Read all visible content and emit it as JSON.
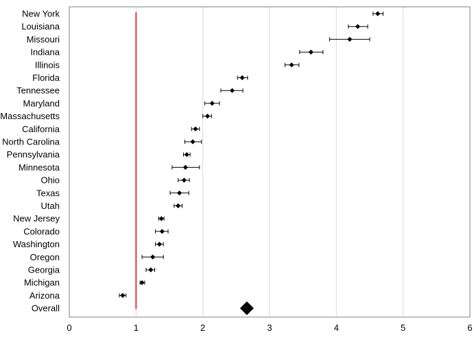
{
  "chart_data": {
    "type": "scatter",
    "subtype": "forest-plot",
    "title": "",
    "xlabel": "",
    "ylabel": "",
    "xlim": [
      0,
      6
    ],
    "xticks": [
      0,
      1,
      2,
      3,
      4,
      5,
      6
    ],
    "grid": "vertical",
    "reference_line": {
      "x": 1,
      "color": "#ff0000"
    },
    "colors": {
      "marker": "#000000",
      "errorbar": "#000000",
      "grid": "#d9d9d9",
      "axis": "#7f7f7f",
      "reference": "#ff0000"
    },
    "rows": [
      {
        "label": "New York",
        "value": 4.62,
        "low": 4.55,
        "high": 4.7
      },
      {
        "label": "Louisiana",
        "value": 4.32,
        "low": 4.18,
        "high": 4.47
      },
      {
        "label": "Missouri",
        "value": 4.2,
        "low": 3.9,
        "high": 4.5
      },
      {
        "label": "Indiana",
        "value": 3.62,
        "low": 3.45,
        "high": 3.8
      },
      {
        "label": "Illinois",
        "value": 3.33,
        "low": 3.23,
        "high": 3.44
      },
      {
        "label": "Florida",
        "value": 2.59,
        "low": 2.52,
        "high": 2.67
      },
      {
        "label": "Tennessee",
        "value": 2.44,
        "low": 2.27,
        "high": 2.6
      },
      {
        "label": "Maryland",
        "value": 2.14,
        "low": 2.03,
        "high": 2.25
      },
      {
        "label": "Massachusetts",
        "value": 2.07,
        "low": 2.0,
        "high": 2.13
      },
      {
        "label": "California",
        "value": 1.89,
        "low": 1.83,
        "high": 1.95
      },
      {
        "label": "North Carolina",
        "value": 1.85,
        "low": 1.73,
        "high": 1.98
      },
      {
        "label": "Pennsylvania",
        "value": 1.76,
        "low": 1.71,
        "high": 1.81
      },
      {
        "label": "Minnesota",
        "value": 1.74,
        "low": 1.54,
        "high": 1.95
      },
      {
        "label": "Ohio",
        "value": 1.72,
        "low": 1.63,
        "high": 1.8
      },
      {
        "label": "Texas",
        "value": 1.65,
        "low": 1.51,
        "high": 1.79
      },
      {
        "label": "Utah",
        "value": 1.63,
        "low": 1.57,
        "high": 1.69
      },
      {
        "label": "New Jersey",
        "value": 1.38,
        "low": 1.34,
        "high": 1.42
      },
      {
        "label": "Colorado",
        "value": 1.39,
        "low": 1.29,
        "high": 1.48
      },
      {
        "label": "Washington",
        "value": 1.35,
        "low": 1.29,
        "high": 1.41
      },
      {
        "label": "Oregon",
        "value": 1.25,
        "low": 1.09,
        "high": 1.41
      },
      {
        "label": "Georgia",
        "value": 1.22,
        "low": 1.15,
        "high": 1.28
      },
      {
        "label": "Michigan",
        "value": 1.09,
        "low": 1.06,
        "high": 1.13
      },
      {
        "label": "Arizona",
        "value": 0.8,
        "low": 0.75,
        "high": 0.85
      },
      {
        "label": "Overall",
        "value": 2.66,
        "summary": true
      }
    ]
  }
}
